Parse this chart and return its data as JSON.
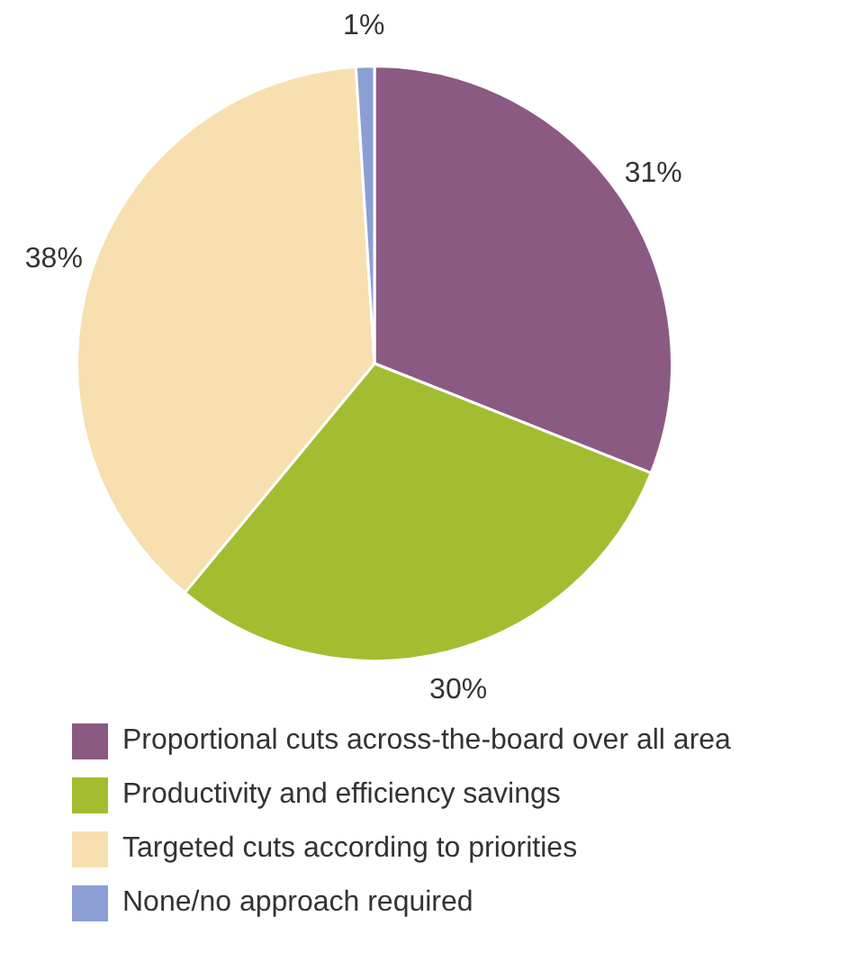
{
  "chart_data": {
    "type": "pie",
    "categories": [
      "Proportional cuts across-the-board over all area",
      "Productivity and efficiency savings",
      "Targeted cuts according to priorities",
      "None/no approach required"
    ],
    "values": [
      31,
      30,
      38,
      1
    ],
    "colors": [
      "#8b5a83",
      "#a3bd31",
      "#f8dfb0",
      "#8b9fd4"
    ],
    "value_labels": [
      "31%",
      "30%",
      "38%",
      "1%"
    ],
    "legend": "bottom"
  }
}
